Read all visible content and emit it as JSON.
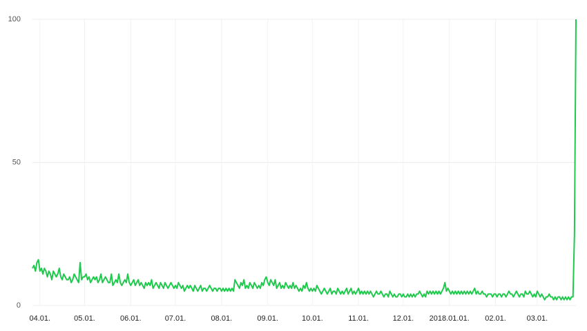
{
  "chart_data": {
    "type": "line",
    "categories": [
      null,
      null,
      null,
      null,
      null,
      "04.01.",
      null,
      null,
      null,
      null,
      null,
      null,
      null,
      null,
      null,
      null,
      null,
      null,
      null,
      null,
      null,
      null,
      null,
      null,
      null,
      null,
      null,
      null,
      null,
      null,
      null,
      null,
      null,
      null,
      null,
      "05.01.",
      null,
      null,
      null,
      null,
      null,
      null,
      null,
      null,
      null,
      null,
      null,
      null,
      null,
      null,
      null,
      null,
      null,
      null,
      null,
      null,
      null,
      null,
      null,
      null,
      null,
      null,
      null,
      null,
      null,
      null,
      "06.01.",
      null,
      null,
      null,
      null,
      null,
      null,
      null,
      null,
      null,
      null,
      null,
      null,
      null,
      null,
      null,
      null,
      null,
      null,
      null,
      null,
      null,
      null,
      null,
      null,
      null,
      null,
      null,
      null,
      null,
      "07.01.",
      null,
      null,
      null,
      null,
      null,
      null,
      null,
      null,
      null,
      null,
      null,
      null,
      null,
      null,
      null,
      null,
      null,
      null,
      null,
      null,
      null,
      null,
      null,
      null,
      null,
      null,
      null,
      null,
      null,
      null,
      "08.01.",
      null,
      null,
      null,
      null,
      null,
      null,
      null,
      null,
      null,
      null,
      null,
      null,
      null,
      null,
      null,
      null,
      null,
      null,
      null,
      null,
      null,
      null,
      null,
      null,
      null,
      null,
      null,
      null,
      null,
      null,
      "09.01.",
      null,
      null,
      null,
      null,
      null,
      null,
      null,
      null,
      null,
      null,
      null,
      null,
      null,
      null,
      null,
      null,
      null,
      null,
      null,
      null,
      null,
      null,
      null,
      null,
      null,
      null,
      null,
      null,
      null,
      "10.01.",
      null,
      null,
      null,
      null,
      null,
      null,
      null,
      null,
      null,
      null,
      null,
      null,
      null,
      null,
      null,
      null,
      null,
      null,
      null,
      null,
      null,
      null,
      null,
      null,
      null,
      null,
      null,
      null,
      null,
      null,
      "11.01.",
      null,
      null,
      null,
      null,
      null,
      null,
      null,
      null,
      null,
      null,
      null,
      null,
      null,
      null,
      null,
      null,
      null,
      null,
      null,
      null,
      null,
      null,
      null,
      null,
      null,
      null,
      null,
      null,
      null,
      "12.01.",
      null,
      null,
      null,
      null,
      null,
      null,
      null,
      null,
      null,
      null,
      null,
      null,
      null,
      null,
      null,
      null,
      null,
      null,
      null,
      null,
      null,
      null,
      null,
      null,
      null,
      null,
      null,
      null,
      null,
      null,
      "2018.01.01.",
      null,
      null,
      null,
      null,
      null,
      null,
      null,
      null,
      null,
      null,
      null,
      null,
      null,
      null,
      null,
      null,
      null,
      null,
      null,
      null,
      null,
      null,
      null,
      null,
      null,
      null,
      null,
      null,
      null,
      null,
      "02.01.",
      null,
      null,
      null,
      null,
      null,
      null,
      null,
      null,
      null,
      null,
      null,
      null,
      null,
      null,
      null,
      null,
      null,
      null,
      null,
      null,
      null,
      null,
      null,
      null,
      null,
      null,
      null,
      "03.01.",
      null,
      null,
      null,
      null,
      null,
      null,
      null,
      null,
      null,
      null,
      null,
      null,
      null,
      null,
      null,
      null,
      null,
      null,
      null,
      null,
      null,
      null,
      null,
      null,
      null,
      null
    ],
    "values": [
      13,
      14,
      12,
      15,
      16,
      12,
      13,
      11,
      13,
      12,
      10,
      12,
      11,
      9,
      12,
      11,
      10,
      11,
      13,
      10,
      9,
      11,
      10,
      9,
      9,
      10,
      8,
      9,
      11,
      10,
      9,
      8,
      15,
      9,
      10,
      10,
      11,
      9,
      10,
      8,
      9,
      10,
      9,
      10,
      8,
      9,
      11,
      8,
      9,
      10,
      9,
      8,
      8,
      11,
      7,
      8,
      9,
      8,
      11,
      8,
      7,
      8,
      9,
      8,
      11,
      8,
      7,
      8,
      9,
      7,
      8,
      9,
      7,
      8,
      7,
      6,
      8,
      7,
      8,
      7,
      9,
      6,
      7,
      8,
      7,
      6,
      8,
      7,
      6,
      8,
      7,
      6,
      7,
      8,
      7,
      6,
      7,
      6,
      8,
      7,
      6,
      7,
      5,
      6,
      7,
      6,
      7,
      6,
      5,
      7,
      6,
      5,
      6,
      7,
      5,
      6,
      6,
      5,
      6,
      7,
      6,
      5,
      6,
      6,
      5,
      6,
      6,
      5,
      6,
      5,
      6,
      5,
      6,
      5,
      6,
      5,
      9,
      8,
      7,
      6,
      8,
      7,
      9,
      6,
      7,
      6,
      8,
      7,
      6,
      8,
      7,
      6,
      7,
      6,
      8,
      7,
      9,
      10,
      8,
      7,
      9,
      8,
      7,
      9,
      6,
      7,
      8,
      6,
      7,
      6,
      8,
      7,
      6,
      7,
      6,
      8,
      6,
      7,
      6,
      5,
      6,
      5,
      7,
      6,
      8,
      6,
      5,
      6,
      5,
      6,
      5,
      7,
      6,
      5,
      4,
      5,
      6,
      5,
      4,
      5,
      6,
      4,
      5,
      5,
      4,
      6,
      5,
      4,
      5,
      4,
      5,
      6,
      4,
      5,
      6,
      4,
      5,
      4,
      5,
      6,
      4,
      5,
      4,
      5,
      4,
      5,
      4,
      5,
      4,
      3,
      4,
      5,
      4,
      4,
      5,
      4,
      3,
      4,
      4,
      3,
      5,
      4,
      3,
      4,
      3,
      3,
      4,
      4,
      3,
      4,
      3,
      3,
      4,
      3,
      4,
      3,
      4,
      3,
      4,
      4,
      5,
      4,
      3,
      4,
      3,
      5,
      4,
      5,
      4,
      5,
      4,
      5,
      4,
      5,
      4,
      5,
      6,
      8,
      5,
      6,
      5,
      4,
      5,
      4,
      5,
      4,
      5,
      4,
      5,
      4,
      5,
      4,
      5,
      4,
      5,
      4,
      5,
      6,
      4,
      5,
      4,
      4,
      5,
      4,
      4,
      3,
      4,
      4,
      4,
      3,
      4,
      4,
      3,
      4,
      4,
      3,
      4,
      4,
      3,
      4,
      5,
      4,
      4,
      3,
      4,
      5,
      4,
      3,
      4,
      4,
      3,
      5,
      4,
      4,
      5,
      4,
      3,
      4,
      3,
      5,
      4,
      3,
      4,
      3,
      2,
      3,
      3,
      4,
      3,
      3,
      2,
      3,
      2,
      3,
      3,
      2,
      3,
      2,
      3,
      2,
      3,
      2,
      3,
      3,
      25,
      100
    ],
    "color": "#1ec94c",
    "ylim": [
      0,
      100
    ],
    "yticks": [
      0,
      50,
      100
    ],
    "grid": true
  }
}
